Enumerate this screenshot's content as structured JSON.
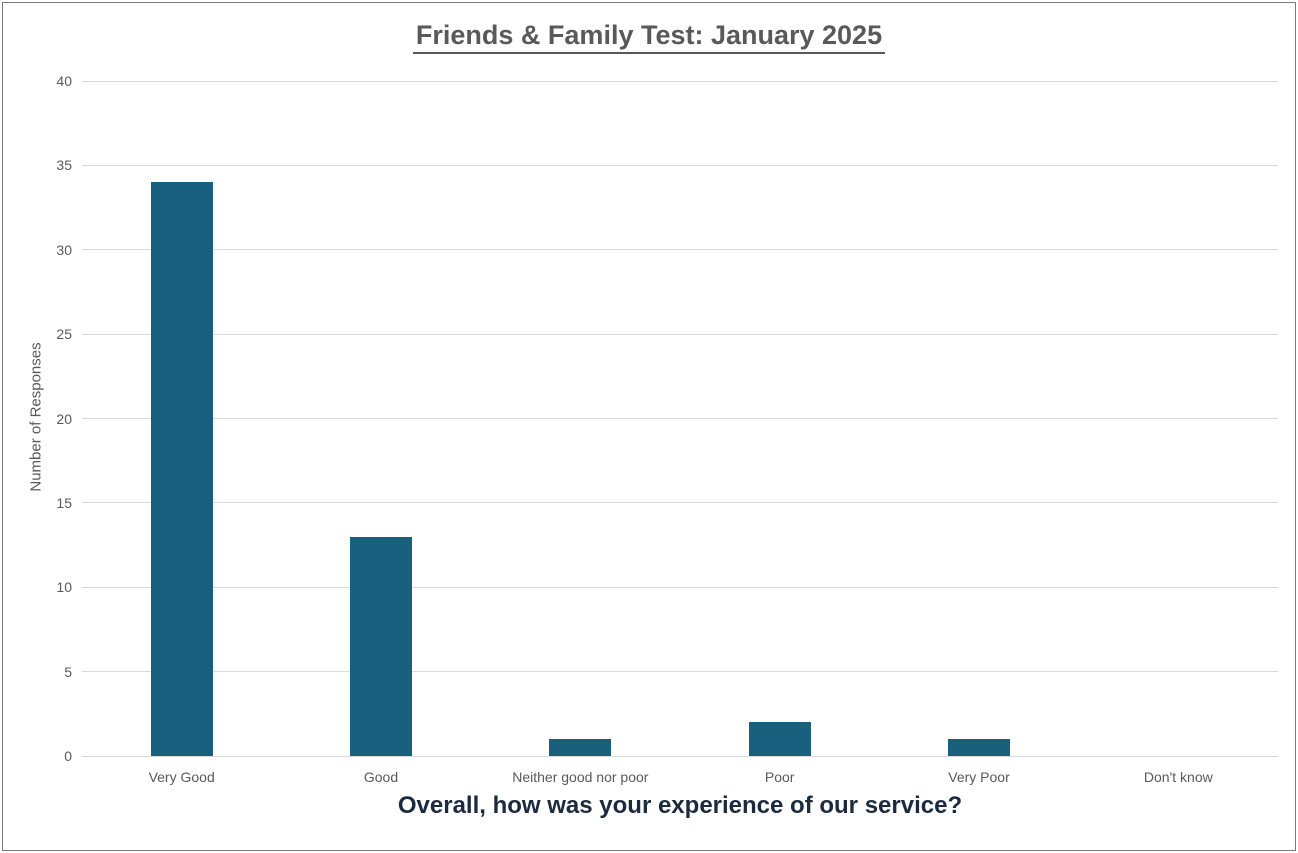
{
  "window": {
    "background": "#FFFFFF",
    "border_color": "#7A7A7A"
  },
  "chart_data": {
    "type": "bar",
    "title": "Friends & Family Test: January 2025",
    "xlabel": "Overall, how was your experience of our service?",
    "ylabel": "Number of Responses",
    "categories": [
      "Very Good",
      "Good",
      "Neither good nor poor",
      "Poor",
      "Very Poor",
      "Don't know"
    ],
    "values": [
      34,
      13,
      1,
      2,
      1,
      0
    ],
    "ylim": [
      0,
      40
    ],
    "ytick_step": 5,
    "yticks": [
      0,
      5,
      10,
      15,
      20,
      25,
      30,
      35,
      40
    ],
    "grid": true,
    "legend_position": "none",
    "colors": {
      "bar": "#19607F",
      "gridline": "#D9D9D9",
      "tick_label": "#595959",
      "title": "#595959",
      "xlabel": "#1B2A3E",
      "ylabel": "#595959"
    }
  }
}
